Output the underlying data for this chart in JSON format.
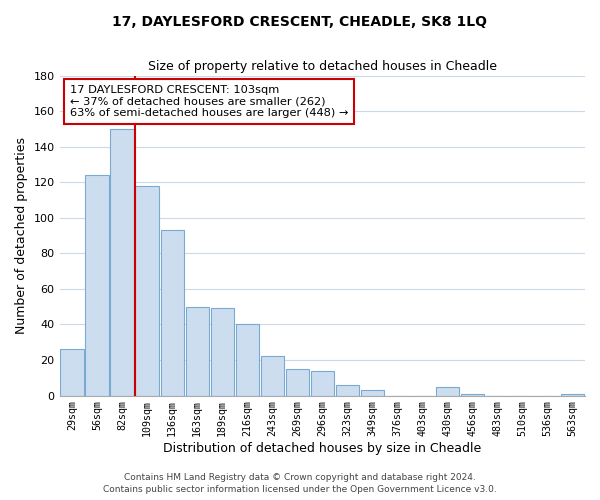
{
  "title": "17, DAYLESFORD CRESCENT, CHEADLE, SK8 1LQ",
  "subtitle": "Size of property relative to detached houses in Cheadle",
  "xlabel": "Distribution of detached houses by size in Cheadle",
  "ylabel": "Number of detached properties",
  "bar_labels": [
    "29sqm",
    "56sqm",
    "82sqm",
    "109sqm",
    "136sqm",
    "163sqm",
    "189sqm",
    "216sqm",
    "243sqm",
    "269sqm",
    "296sqm",
    "323sqm",
    "349sqm",
    "376sqm",
    "403sqm",
    "430sqm",
    "456sqm",
    "483sqm",
    "510sqm",
    "536sqm",
    "563sqm"
  ],
  "bar_values": [
    26,
    124,
    150,
    118,
    93,
    50,
    49,
    40,
    22,
    15,
    14,
    6,
    3,
    0,
    0,
    5,
    1,
    0,
    0,
    0,
    1
  ],
  "bar_color": "#ccddf0",
  "bar_edge_color": "#7aaad0",
  "vline_color": "#cc0000",
  "vline_index": 2.5,
  "ylim": [
    0,
    180
  ],
  "annotation_text": "17 DAYLESFORD CRESCENT: 103sqm\n← 37% of detached houses are smaller (262)\n63% of semi-detached houses are larger (448) →",
  "footer1": "Contains HM Land Registry data © Crown copyright and database right 2024.",
  "footer2": "Contains public sector information licensed under the Open Government Licence v3.0.",
  "background_color": "#ffffff",
  "grid_color": "#ccd8ec"
}
